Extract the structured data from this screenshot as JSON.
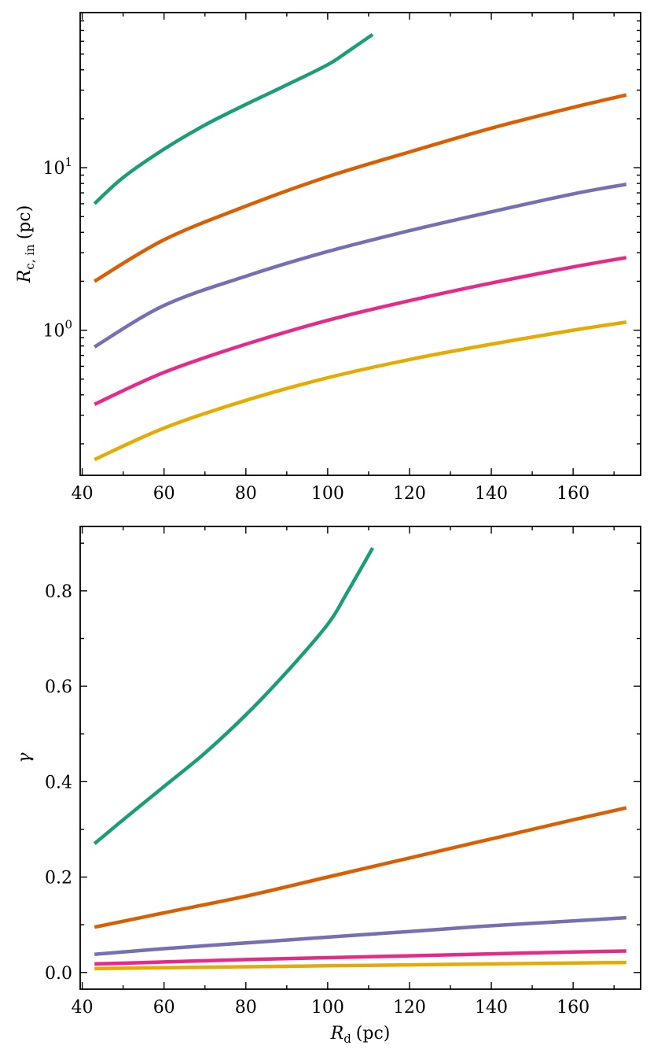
{
  "chart_data": [
    {
      "type": "line",
      "title": "",
      "xlabel_main": "",
      "xlabel_sub": "",
      "xlabel_unit": "",
      "ylabel_main": "R",
      "ylabel_sub": "c, in",
      "ylabel_unit": "(pc)",
      "yscale": "log",
      "xlim": [
        39.5,
        176.5
      ],
      "ylim": [
        0.128,
        90
      ],
      "xticks": [
        40,
        60,
        80,
        100,
        120,
        140,
        160
      ],
      "xtick_labels": [
        "40",
        "60",
        "80",
        "100",
        "120",
        "140",
        "160"
      ],
      "ytick_labels": [
        {
          "base": "10",
          "exp": "0",
          "value": 1
        },
        {
          "base": "10",
          "exp": "1",
          "value": 10
        }
      ],
      "series": [
        {
          "name": "green",
          "color": "#1b9e77",
          "x": [
            43,
            50,
            60,
            70,
            80,
            90,
            100,
            105,
            111
          ],
          "y": [
            6.0,
            8.7,
            13.0,
            18.3,
            24.5,
            32.3,
            43.0,
            52.0,
            66.0
          ]
        },
        {
          "name": "orange",
          "color": "#d95f02",
          "x": [
            43,
            60,
            80,
            100,
            120,
            140,
            160,
            173
          ],
          "y": [
            2.0,
            3.6,
            5.8,
            8.8,
            12.5,
            17.5,
            23.5,
            28.0
          ]
        },
        {
          "name": "purple",
          "color": "#7570b3",
          "x": [
            43,
            60,
            80,
            100,
            120,
            140,
            160,
            173
          ],
          "y": [
            0.79,
            1.42,
            2.15,
            3.05,
            4.1,
            5.35,
            6.9,
            7.9
          ]
        },
        {
          "name": "pink",
          "color": "#e7298a",
          "x": [
            43,
            60,
            80,
            100,
            120,
            140,
            160,
            173
          ],
          "y": [
            0.35,
            0.55,
            0.82,
            1.15,
            1.52,
            1.95,
            2.45,
            2.8
          ]
        },
        {
          "name": "yellow",
          "color": "#e6ab02",
          "x": [
            43,
            60,
            80,
            100,
            120,
            140,
            160,
            173
          ],
          "y": [
            0.16,
            0.25,
            0.37,
            0.51,
            0.66,
            0.82,
            1.0,
            1.12
          ]
        }
      ]
    },
    {
      "type": "line",
      "title": "",
      "xlabel_main": "R",
      "xlabel_sub": "d",
      "xlabel_unit": "(pc)",
      "ylabel_main": "γ",
      "ylabel_sub": "",
      "ylabel_unit": "",
      "yscale": "linear",
      "xlim": [
        39.5,
        176.5
      ],
      "ylim": [
        -0.035,
        0.935
      ],
      "xticks": [
        40,
        60,
        80,
        100,
        120,
        140,
        160
      ],
      "xtick_labels": [
        "40",
        "60",
        "80",
        "100",
        "120",
        "140",
        "160"
      ],
      "yticks": [
        0.0,
        0.2,
        0.4,
        0.6,
        0.8
      ],
      "ytick_labels": [
        "0.0",
        "0.2",
        "0.4",
        "0.6",
        "0.8"
      ],
      "series": [
        {
          "name": "green",
          "color": "#1b9e77",
          "x": [
            43,
            50,
            60,
            70,
            80,
            90,
            100,
            105,
            111
          ],
          "y": [
            0.27,
            0.32,
            0.39,
            0.46,
            0.54,
            0.63,
            0.73,
            0.8,
            0.89
          ]
        },
        {
          "name": "orange",
          "color": "#d95f02",
          "x": [
            43,
            60,
            80,
            100,
            120,
            140,
            160,
            173
          ],
          "y": [
            0.095,
            0.125,
            0.16,
            0.2,
            0.24,
            0.28,
            0.32,
            0.345
          ]
        },
        {
          "name": "purple",
          "color": "#7570b3",
          "x": [
            43,
            60,
            80,
            100,
            120,
            140,
            160,
            173
          ],
          "y": [
            0.038,
            0.05,
            0.062,
            0.074,
            0.086,
            0.098,
            0.108,
            0.115
          ]
        },
        {
          "name": "pink",
          "color": "#e7298a",
          "x": [
            43,
            60,
            80,
            100,
            120,
            140,
            160,
            173
          ],
          "y": [
            0.018,
            0.022,
            0.027,
            0.031,
            0.035,
            0.039,
            0.043,
            0.045
          ]
        },
        {
          "name": "yellow",
          "color": "#e6ab02",
          "x": [
            43,
            60,
            80,
            100,
            120,
            140,
            160,
            173
          ],
          "y": [
            0.008,
            0.01,
            0.012,
            0.014,
            0.016,
            0.018,
            0.02,
            0.021
          ]
        }
      ]
    }
  ]
}
